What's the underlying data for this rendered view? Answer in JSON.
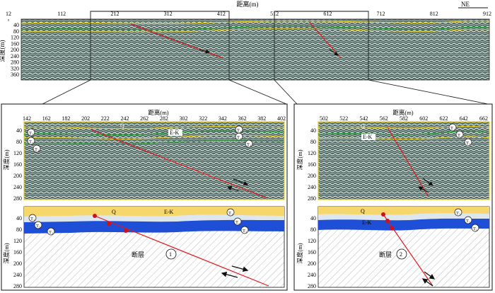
{
  "top": {
    "title": "距离(m)",
    "ylabel": "深度(m)",
    "direction": "NE",
    "x_ticks": [
      "12",
      "112",
      "212",
      "312",
      "412",
      "512",
      "612",
      "712",
      "812",
      "912"
    ],
    "y_ticks": [
      "40",
      "80",
      "120",
      "160",
      "200",
      "240",
      "280",
      "320",
      "360"
    ]
  },
  "left_panel": {
    "title": "距离(m)",
    "ylabel": "深度(m)",
    "x_ticks": [
      "142",
      "162",
      "182",
      "202",
      "222",
      "242",
      "262",
      "282",
      "302",
      "322",
      "342",
      "362",
      "382",
      "402"
    ],
    "seis_y_ticks": [
      "40",
      "80",
      "120",
      "160",
      "200",
      "240",
      "280"
    ],
    "model_y_ticks": [
      "40",
      "80",
      "120",
      "160",
      "200",
      "240",
      "280"
    ],
    "labels": {
      "q": "Q",
      "ek": "E-K",
      "t1": "T₁",
      "t2": "T₂",
      "t3": "T₃",
      "fault": "断层",
      "fault_no": "1"
    }
  },
  "right_panel": {
    "title": "距离(m)",
    "ylabel": "深度(m)",
    "x_ticks": [
      "502",
      "522",
      "542",
      "562",
      "582",
      "602",
      "622",
      "642",
      "662"
    ],
    "seis_y_ticks": [
      "40",
      "80",
      "120",
      "160",
      "200",
      "240",
      "280"
    ],
    "model_y_ticks": [
      "40",
      "80",
      "120",
      "160",
      "200",
      "240",
      "280"
    ],
    "labels": {
      "q": "Q",
      "ek": "E-K",
      "t1": "T₁",
      "t2": "T₂",
      "t3": "T₃",
      "fault": "断层",
      "fault_no": "2"
    }
  },
  "colors": {
    "fault_line": "#e0181c",
    "horizon_yellow": "#e8d020",
    "horizon_green": "#2a9d3a",
    "layer_q": "#f5d76e",
    "layer_ek": "#dfe7ee",
    "layer_t": "#1f4fd6",
    "hatch": "#9a9a9a",
    "seismic_bg": "#3f5a55"
  }
}
